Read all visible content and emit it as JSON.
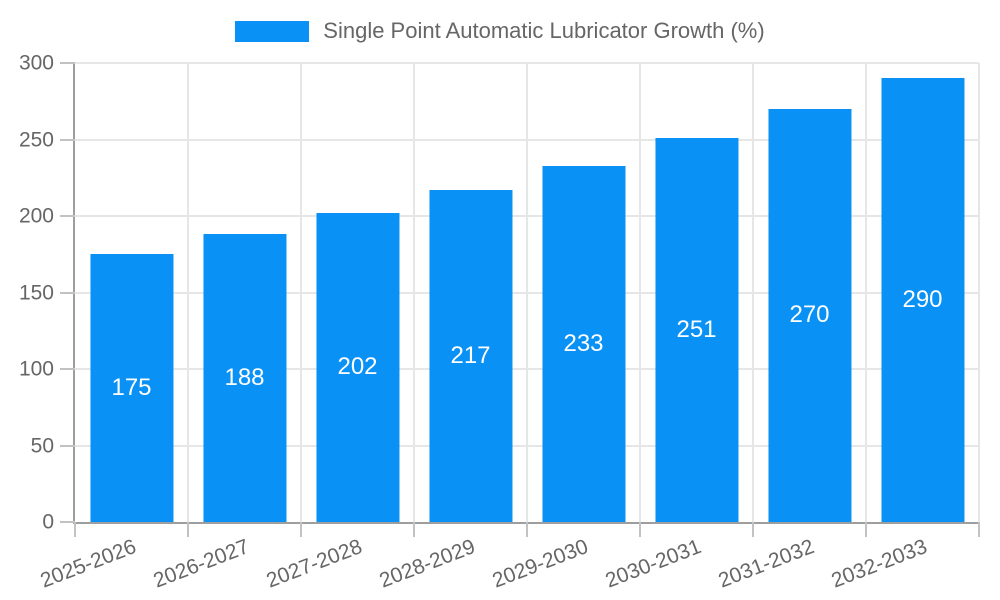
{
  "chart_data": {
    "type": "bar",
    "title": "Single Point Automatic Lubricator Growth (%)",
    "categories": [
      "2025-2026",
      "2026-2027",
      "2027-2028",
      "2028-2029",
      "2029-2030",
      "2030-2031",
      "2031-2032",
      "2032-2033"
    ],
    "series": [
      {
        "name": "Single Point Automatic Lubricator Growth (%)",
        "values": [
          175,
          188,
          202,
          217,
          233,
          251,
          270,
          290
        ]
      }
    ],
    "xlabel": "",
    "ylabel": "",
    "ylim": [
      0,
      300
    ],
    "yticks": [
      0,
      50,
      100,
      150,
      200,
      250,
      300
    ],
    "grid": true,
    "legend_position": "top",
    "value_label_position": "inside-center",
    "colors": {
      "bar": "#0A91F5",
      "grid_line": "#E6E6E6",
      "axis_line": "#9E9E9E",
      "tick_mark": "#C2C2C2",
      "axis_text": "#666666",
      "legend_text": "#666666",
      "value_text": "#FFFFFF",
      "background": "#FFFFFF"
    }
  }
}
